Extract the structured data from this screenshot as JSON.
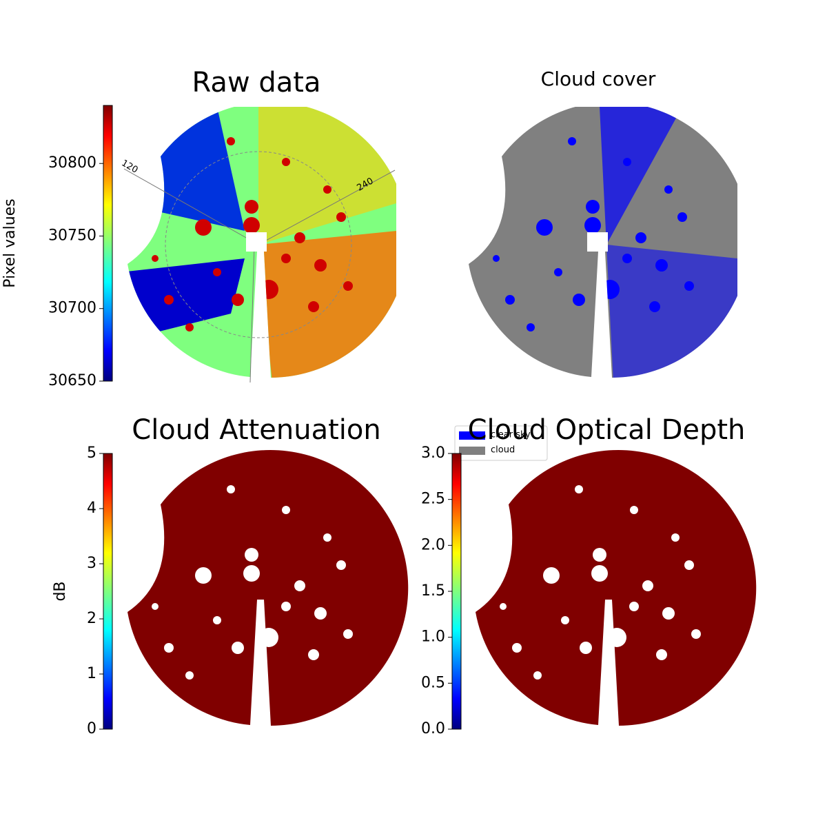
{
  "chart_data": [
    {
      "type": "image",
      "title": "Raw data",
      "colorbar_label": "Pixel values",
      "colormap": "jet",
      "ylim": [
        30650,
        30840
      ],
      "yticks": [
        30650,
        30700,
        30750,
        30800
      ],
      "annotations": [
        "120",
        "240"
      ]
    },
    {
      "type": "image",
      "title": "Cloud cover",
      "legend": [
        {
          "name": "clear sky",
          "color": "#0000ff"
        },
        {
          "name": "cloud",
          "color": "#808080"
        }
      ]
    },
    {
      "type": "image",
      "title": "Cloud Attenuation",
      "colorbar_label": "dB",
      "colormap": "jet",
      "ylim": [
        0,
        5
      ],
      "yticks": [
        0,
        1,
        2,
        3,
        4,
        5
      ]
    },
    {
      "type": "image",
      "title": "Cloud Optical Depth",
      "colormap": "jet",
      "ylim": [
        0,
        3
      ],
      "yticks": [
        {
          "value": 0,
          "label": "0.0"
        },
        0.5,
        {
          "value": 1,
          "label": "1.0"
        },
        1.5,
        {
          "value": 2,
          "label": "2.0"
        },
        2.5,
        {
          "value": 3,
          "label": "3.0"
        }
      ]
    }
  ]
}
